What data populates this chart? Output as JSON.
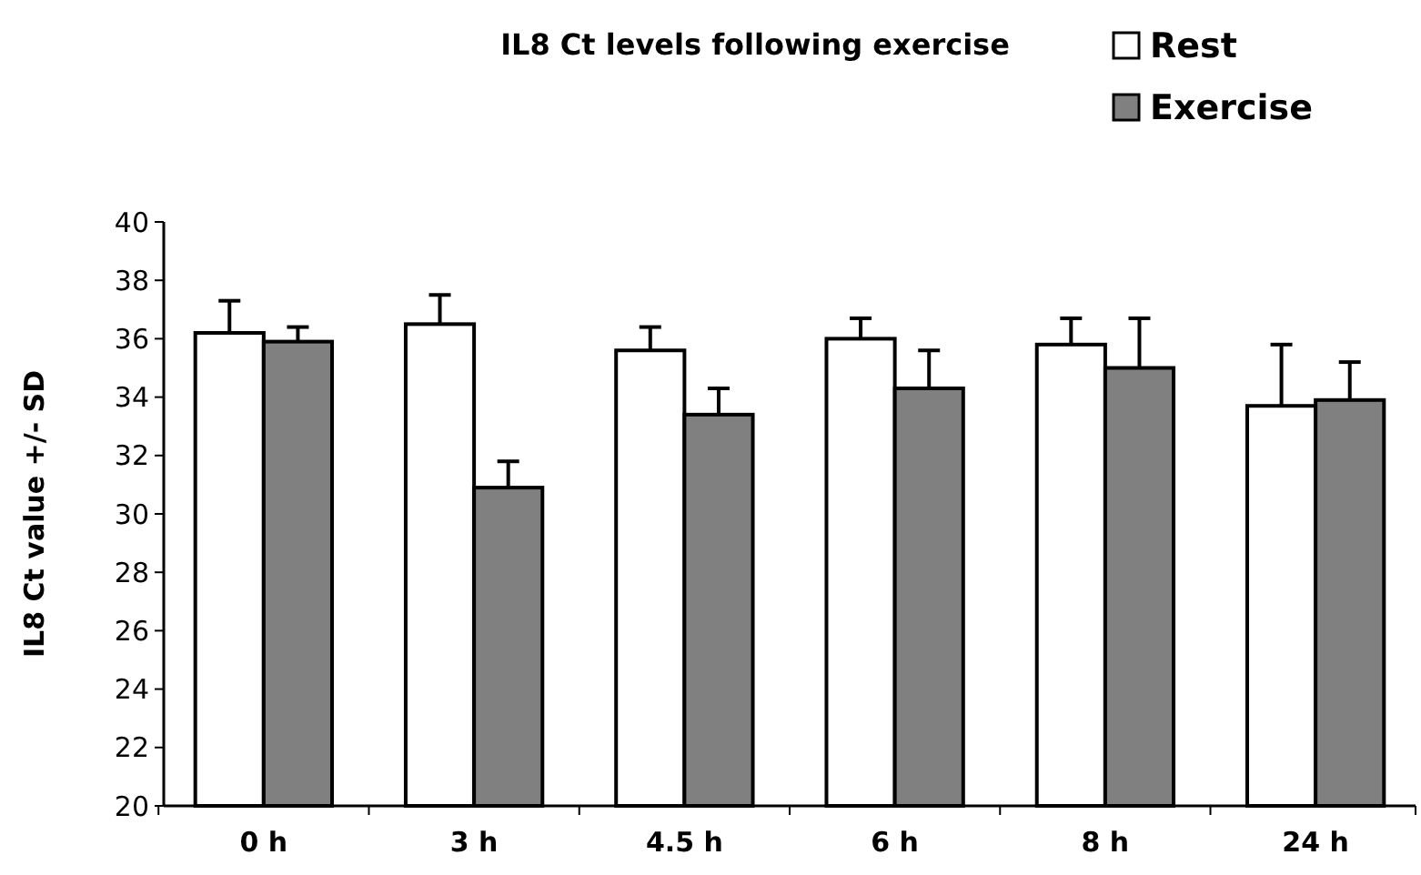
{
  "chart_data": {
    "type": "bar",
    "title": "IL8 Ct levels following exercise",
    "ylabel": "IL8 Ct value +/- SD",
    "categories": [
      "0 h",
      "3 h",
      "4.5 h",
      "6 h",
      "8 h",
      "24 h"
    ],
    "series": [
      {
        "name": "Rest",
        "color": "#ffffff",
        "values": [
          36.2,
          36.5,
          35.6,
          36.0,
          35.8,
          33.7
        ],
        "errors": [
          [
            36.2,
            37.3
          ],
          [
            36.5,
            37.5
          ],
          [
            35.6,
            36.4
          ],
          [
            36.0,
            36.7
          ],
          [
            35.8,
            36.7
          ],
          [
            33.7,
            35.8
          ]
        ]
      },
      {
        "name": "Exercise",
        "color": "#808080",
        "values": [
          35.9,
          30.9,
          33.4,
          34.3,
          35.0,
          33.9
        ],
        "errors": [
          [
            35.9,
            36.4
          ],
          [
            30.9,
            31.8
          ],
          [
            33.4,
            34.3
          ],
          [
            34.3,
            35.6
          ],
          [
            35.0,
            36.7
          ],
          [
            33.9,
            35.2
          ]
        ]
      }
    ],
    "ylim": [
      20,
      40
    ],
    "yticks": [
      20,
      22,
      24,
      26,
      28,
      30,
      32,
      34,
      36,
      38,
      40
    ],
    "grid": false,
    "legend": "top right"
  }
}
